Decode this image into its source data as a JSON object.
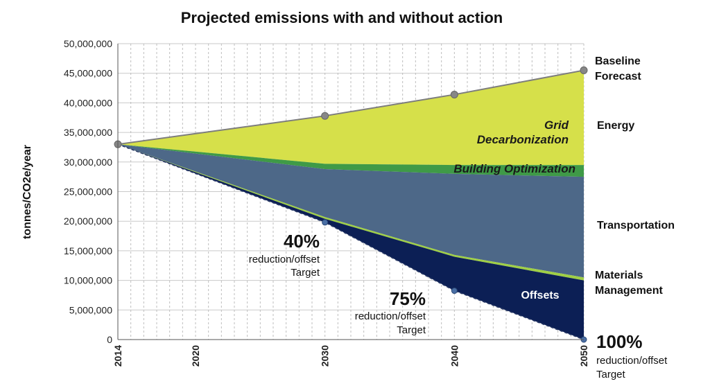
{
  "chart_data": {
    "type": "area",
    "title": "Projected emissions with and without action",
    "xlabel": "",
    "ylabel": "tonnes/CO2e/year",
    "x": [
      2014,
      2030,
      2040,
      2050
    ],
    "xticks": [
      "2014",
      "2020",
      "2030",
      "2040",
      "2050"
    ],
    "xlim": [
      2014,
      2050
    ],
    "ylim": [
      0,
      50000000
    ],
    "yticks": [
      "0",
      "5,000,000",
      "10,000,000",
      "15,000,000",
      "20,000,000",
      "25,000,000",
      "30,000,000",
      "35,000,000",
      "40,000,000",
      "45,000,000",
      "50,000,000"
    ],
    "grid": true,
    "baseline": {
      "name": "Baseline Forecast",
      "values": [
        33000000,
        37800000,
        41400000,
        45500000
      ]
    },
    "boundaries": [
      {
        "name": "Energy",
        "values": [
          33000000,
          37800000,
          41400000,
          45500000
        ]
      },
      {
        "name": "Building Optimization",
        "values": [
          33000000,
          29700000,
          29500000,
          29500000
        ]
      },
      {
        "name": "Transportation",
        "values": [
          33000000,
          28800000,
          28000000,
          27500000
        ]
      },
      {
        "name": "Materials Management",
        "values": [
          33000000,
          20700000,
          14300000,
          10500000
        ]
      },
      {
        "name": "Offsets",
        "values": [
          33000000,
          20400000,
          14000000,
          10000000
        ]
      }
    ],
    "target": {
      "name": "Target",
      "values": [
        33000000,
        19800000,
        8250000,
        0
      ]
    },
    "colors": {
      "energy": "#d6e04a",
      "building": "#3f9a47",
      "transportation": "#4d6888",
      "materials": "#9fcf45",
      "offsets": "#0c1f55",
      "line": "#7d7d7d",
      "marker": "#878787",
      "target_marker": "#4a6fa5"
    },
    "labels": {
      "baseline_line1": "Baseline",
      "baseline_line2": "Forecast",
      "energy": "Energy",
      "transportation": "Transportation",
      "materials_line1": "Materials",
      "materials_line2": "Management",
      "grid_line1": "Grid",
      "grid_line2": "Decarbonization",
      "building": "Building Optimization",
      "offsets": "Offsets"
    },
    "annotations": [
      {
        "big": "40%",
        "line1": "reduction/offset",
        "line2": "Target"
      },
      {
        "big": "75%",
        "line1": "reduction/offset",
        "line2": "Target"
      },
      {
        "big": "100%",
        "line1": "reduction/offset",
        "line2": "Target"
      }
    ]
  }
}
